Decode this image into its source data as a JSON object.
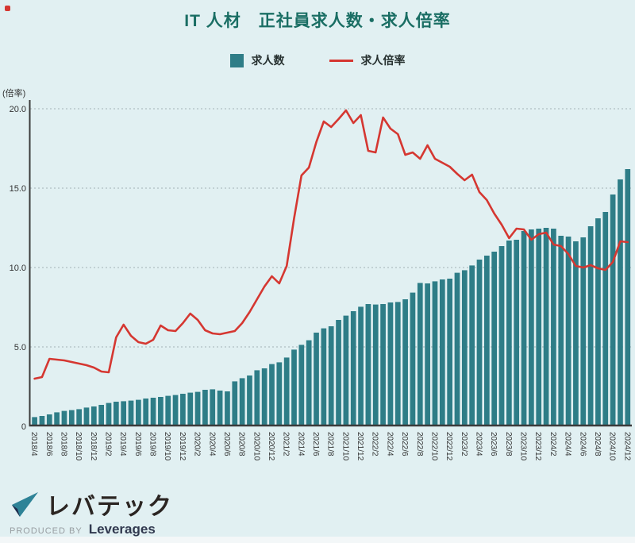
{
  "title": "IT 人材　正社員求人数・求人倍率",
  "legend": {
    "bars_label": "求人数",
    "line_label": "求人倍率"
  },
  "axis": {
    "unit_label": "(倍率)"
  },
  "logo": {
    "brand": "レバテック",
    "produced_by": "PRODUCED BY",
    "company": "Leverages"
  },
  "colors": {
    "background": "#e1f0f2",
    "bar_teal": "#2e7d87",
    "line_red": "#d53731",
    "title_teal": "#1a6e64",
    "axis_dark": "#3b3b3b",
    "grid_gray": "#a3b2b5",
    "tick_text": "#333333"
  },
  "chart_data": {
    "type": "combo",
    "title": "IT 人材　正社員求人数・求人倍率",
    "ylabel": "(倍率)",
    "ylim": [
      0,
      20
    ],
    "grid": "dotted horizontal lines at 5.0, 10.0, 15.0, 20.0",
    "legend_position": "top-center",
    "y_tick_labels": [
      "20.0",
      "15.0",
      "10.0",
      "5.0",
      "0"
    ],
    "y_tick_values": [
      20,
      15,
      10,
      5,
      0
    ],
    "categories": [
      "2018/4",
      "2018/5",
      "2018/6",
      "2018/7",
      "2018/8",
      "2018/9",
      "2018/10",
      "2018/11",
      "2018/12",
      "2019/1",
      "2019/2",
      "2019/3",
      "2019/4",
      "2019/5",
      "2019/6",
      "2019/7",
      "2019/8",
      "2019/9",
      "2019/10",
      "2019/11",
      "2019/12",
      "2020/1",
      "2020/2",
      "2020/3",
      "2020/4",
      "2020/5",
      "2020/6",
      "2020/7",
      "2020/8",
      "2020/9",
      "2020/10",
      "2020/11",
      "2020/12",
      "2021/1",
      "2021/2",
      "2021/3",
      "2021/4",
      "2021/5",
      "2021/6",
      "2021/7",
      "2021/8",
      "2021/9",
      "2021/10",
      "2021/11",
      "2021/12",
      "2022/1",
      "2022/2",
      "2022/3",
      "2022/4",
      "2022/5",
      "2022/6",
      "2022/7",
      "2022/8",
      "2022/9",
      "2022/10",
      "2022/11",
      "2022/12",
      "2023/1",
      "2023/2",
      "2023/3",
      "2023/4",
      "2023/5",
      "2023/6",
      "2023/7",
      "2023/8",
      "2023/9",
      "2023/10",
      "2023/11",
      "2023/12",
      "2024/1",
      "2024/2",
      "2024/3",
      "2024/4",
      "2024/5",
      "2024/6",
      "2024/7",
      "2024/8",
      "2024/9",
      "2024/10",
      "2024/11",
      "2024/12"
    ],
    "x_tick_labels": [
      "2018/4",
      "2018/6",
      "2018/8",
      "2018/10",
      "2018/12",
      "2019/2",
      "2019/4",
      "2019/6",
      "2019/8",
      "2019/10",
      "2019/12",
      "2020/2",
      "2020/4",
      "2020/6",
      "2020/8",
      "2020/10",
      "2020/12",
      "2021/2",
      "2021/4",
      "2021/6",
      "2021/8",
      "2021/10",
      "2021/12",
      "2022/2",
      "2022/4",
      "2022/6",
      "2022/8",
      "2022/10",
      "2022/12",
      "2023/2",
      "2023/4",
      "2023/6",
      "2023/8",
      "2023/10",
      "2023/12",
      "2024/2",
      "2024/4",
      "2024/6",
      "2024/8",
      "2024/10",
      "2024/12"
    ],
    "series": [
      {
        "name": "求人数",
        "type": "bar",
        "unit": "index shown against left-axis scale (no numeric axis displayed)",
        "color": "#2e7d87",
        "values": [
          0.58,
          0.65,
          0.75,
          0.88,
          0.97,
          1.02,
          1.08,
          1.18,
          1.25,
          1.35,
          1.47,
          1.55,
          1.58,
          1.62,
          1.67,
          1.75,
          1.8,
          1.85,
          1.92,
          1.97,
          2.05,
          2.12,
          2.17,
          2.3,
          2.33,
          2.25,
          2.2,
          2.83,
          3.03,
          3.2,
          3.53,
          3.65,
          3.92,
          4.03,
          4.33,
          4.83,
          5.13,
          5.42,
          5.9,
          6.17,
          6.3,
          6.7,
          6.97,
          7.25,
          7.53,
          7.7,
          7.67,
          7.7,
          7.8,
          7.83,
          8.0,
          8.42,
          9.03,
          9.0,
          9.13,
          9.25,
          9.3,
          9.67,
          9.83,
          10.13,
          10.5,
          10.75,
          11.0,
          11.35,
          11.7,
          11.75,
          12.3,
          12.4,
          12.45,
          12.5,
          12.45,
          12.0,
          11.95,
          11.65,
          11.9,
          12.6,
          13.1,
          13.5,
          14.6,
          15.55,
          16.2
        ]
      },
      {
        "name": "求人倍率",
        "type": "line",
        "unit": "倍率 (left axis)",
        "color": "#d53731",
        "values": [
          3.0,
          3.1,
          4.25,
          4.2,
          4.15,
          4.05,
          3.95,
          3.85,
          3.7,
          3.45,
          3.4,
          5.6,
          6.4,
          5.7,
          5.3,
          5.2,
          5.45,
          6.35,
          6.05,
          6.0,
          6.5,
          7.1,
          6.7,
          6.05,
          5.85,
          5.8,
          5.9,
          6.0,
          6.5,
          7.2,
          8.0,
          8.8,
          9.45,
          9.0,
          10.1,
          13.1,
          15.8,
          16.3,
          17.9,
          19.2,
          18.85,
          19.35,
          19.9,
          19.1,
          19.6,
          17.35,
          17.25,
          19.45,
          18.75,
          18.4,
          17.1,
          17.25,
          16.85,
          17.7,
          16.85,
          16.6,
          16.35,
          15.9,
          15.5,
          15.85,
          14.75,
          14.25,
          13.4,
          12.7,
          11.85,
          12.45,
          12.4,
          11.75,
          12.1,
          12.2,
          11.45,
          11.35,
          10.85,
          10.1,
          10.0,
          10.15,
          9.95,
          9.85,
          10.35,
          11.65,
          11.6
        ]
      }
    ]
  }
}
